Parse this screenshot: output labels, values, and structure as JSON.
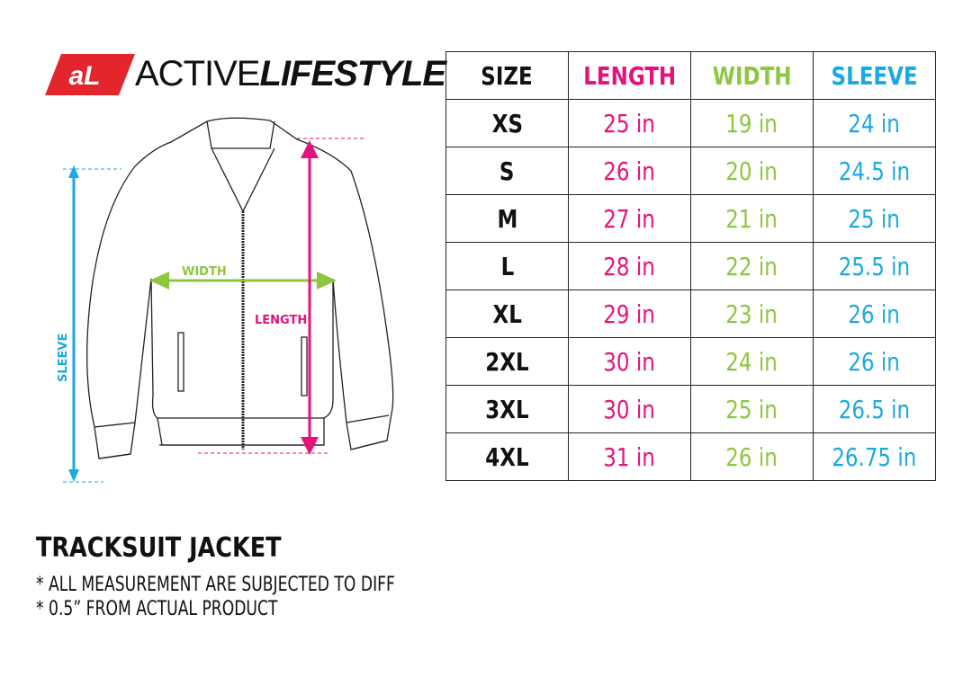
{
  "brand": {
    "badge": "AL",
    "name_light": "ACTIVE",
    "name_bold": "LIFESTYLE",
    "badge_color": "#e3262b"
  },
  "colors": {
    "length": "#e5127d",
    "width": "#8dc63f",
    "sleeve": "#1ba9e1"
  },
  "diagram": {
    "width_label": "WIDTH",
    "length_label": "LENGTH",
    "sleeve_label": "SLEEVE"
  },
  "table": {
    "headers": [
      "SIZE",
      "LENGTH",
      "WIDTH",
      "SLEEVE"
    ],
    "rows": [
      [
        "XS",
        "25 in",
        "19 in",
        "24 in"
      ],
      [
        "S",
        "26 in",
        "20 in",
        "24.5 in"
      ],
      [
        "M",
        "27 in",
        "21 in",
        "25 in"
      ],
      [
        "L",
        "28 in",
        "22 in",
        "25.5 in"
      ],
      [
        "XL",
        "29 in",
        "23 in",
        "26 in"
      ],
      [
        "2XL",
        "30 in",
        "24 in",
        "26 in"
      ],
      [
        "3XL",
        "30 in",
        "25 in",
        "26.5 in"
      ],
      [
        "4XL",
        "31 in",
        "26 in",
        "26.75 in"
      ]
    ]
  },
  "product": {
    "title": "TRACKSUIT JACKET",
    "notes": [
      "* ALL MEASUREMENT ARE SUBJECTED TO DIFF",
      "* 0.5” FROM ACTUAL PRODUCT"
    ]
  }
}
